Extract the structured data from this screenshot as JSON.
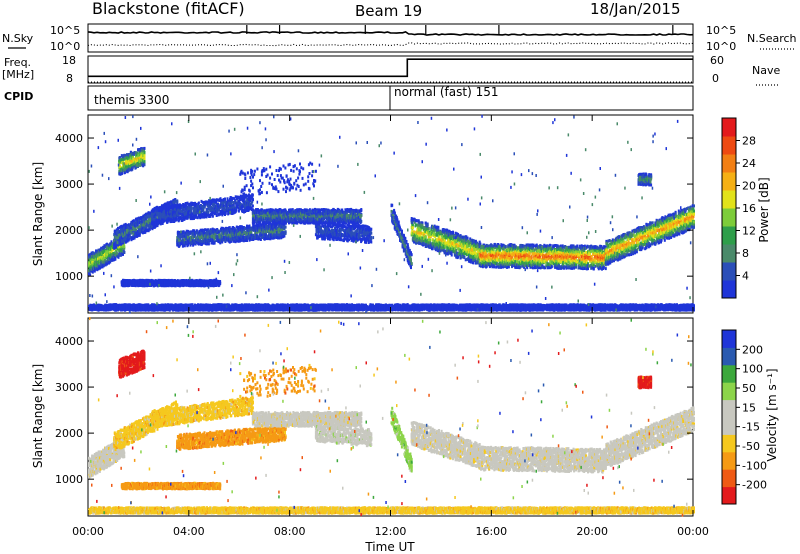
{
  "header": {
    "station": "Blackstone (fitACF)",
    "beam": "Beam 19",
    "date": "18/Jan/2015"
  },
  "left_labels": {
    "nsky": "N.Sky",
    "freq_line1": "Freq.",
    "freq_line2": "[MHz]",
    "cpid": "CPID"
  },
  "right_labels": {
    "nsearch": "N.Search",
    "nave": "Nave"
  },
  "tick_labels": {
    "noise_top": "10^5",
    "noise_bottom": "10^0",
    "freq_top": "18",
    "freq_bottom": "8",
    "nave_top": "60",
    "nave_bottom": "0"
  },
  "cpid_segments": [
    {
      "label": "themis 3300"
    },
    {
      "label": "normal (fast) 151"
    }
  ],
  "colors": {
    "power": [
      "#1f35d8",
      "#2b4fb8",
      "#4a8a6a",
      "#2e9e4a",
      "#7dcc3a",
      "#e2e21a",
      "#f5b015",
      "#f27f14",
      "#ee4a12",
      "#e31a1c"
    ],
    "velocity": [
      "#e31a1c",
      "#ef5a14",
      "#f59a14",
      "#f5c81e",
      "#c8c8c0",
      "#c8c8c0",
      "#8cd44a",
      "#3ca83c",
      "#2a5ab0",
      "#1f35d8"
    ]
  },
  "chart_data": [
    {
      "type": "line",
      "name": "noise-panel",
      "series": [
        {
          "name": "N.Sky",
          "style": "solid"
        },
        {
          "name": "N.Search",
          "style": "dotted"
        }
      ],
      "ylim": [
        "10^0",
        "10^5"
      ]
    },
    {
      "type": "line",
      "name": "frequency-nave-panel",
      "series": [
        {
          "name": "Freq.",
          "units": "MHz",
          "x": [
            "00:00",
            "12:40",
            "12:40",
            "24:00"
          ],
          "y": [
            10.5,
            10.5,
            16.8,
            16.8
          ]
        },
        {
          "name": "Nave",
          "style": "dotted",
          "x": [
            "00:00",
            "24:00"
          ],
          "y": [
            2,
            2
          ]
        }
      ],
      "ylim_freq": [
        8,
        18
      ],
      "ylim_nave": [
        0,
        60
      ]
    },
    {
      "type": "heatmap",
      "name": "power-panel",
      "xlabel": "",
      "ylabel": "Slant Range [km]",
      "xlim": [
        "00:00",
        "24:00"
      ],
      "ylim": [
        200,
        4500
      ],
      "yticks": [
        1000,
        2000,
        3000,
        4000
      ],
      "colorbar": {
        "label": "Power [dB]",
        "ticks": [
          "4",
          "8",
          "12",
          "16",
          "20",
          "24",
          "28"
        ]
      }
    },
    {
      "type": "heatmap",
      "name": "velocity-panel",
      "xlabel": "Time UT",
      "ylabel": "Slant Range [km]",
      "xlim": [
        "00:00",
        "24:00"
      ],
      "ylim": [
        200,
        4500
      ],
      "xticks": [
        "00:00",
        "04:00",
        "08:00",
        "12:00",
        "16:00",
        "20:00",
        "00:00"
      ],
      "yticks": [
        1000,
        2000,
        3000,
        4000
      ],
      "colorbar": {
        "label": "Velocity [m s⁻¹]",
        "ticks": [
          "-200",
          "-100",
          "-50",
          "-15",
          "15",
          "50",
          "100",
          "200"
        ]
      }
    }
  ]
}
